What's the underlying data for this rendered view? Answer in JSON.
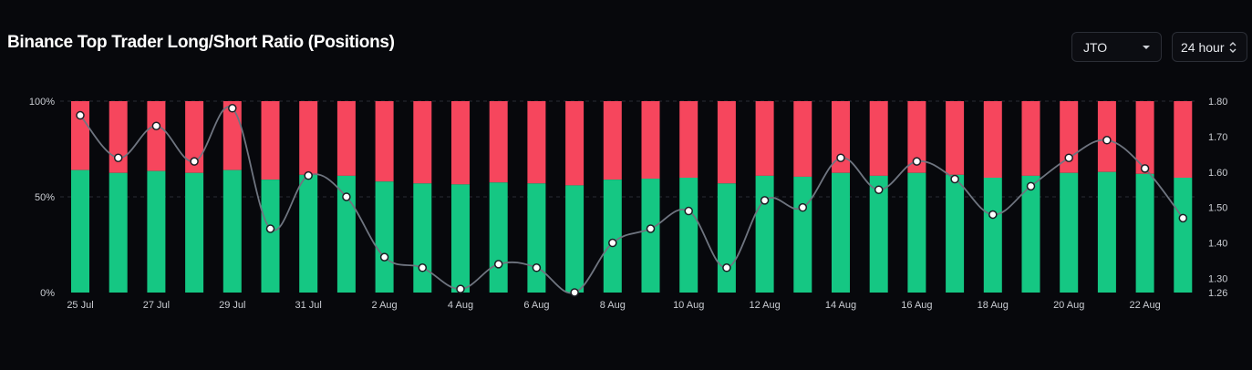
{
  "header": {
    "title": "Binance Top Trader Long/Short Ratio (Positions)",
    "symbol": "JTO",
    "interval": "24 hour"
  },
  "colors": {
    "long": "#15c783",
    "short": "#f6465d",
    "line": "#6f7580",
    "background": "#07080c"
  },
  "chart_data": {
    "type": "bar",
    "stacked": true,
    "categories": [
      "25 Jul",
      "26 Jul",
      "27 Jul",
      "28 Jul",
      "29 Jul",
      "30 Jul",
      "31 Jul",
      "1 Aug",
      "2 Aug",
      "3 Aug",
      "4 Aug",
      "5 Aug",
      "6 Aug",
      "7 Aug",
      "8 Aug",
      "9 Aug",
      "10 Aug",
      "11 Aug",
      "12 Aug",
      "13 Aug",
      "14 Aug",
      "15 Aug",
      "16 Aug",
      "17 Aug",
      "18 Aug",
      "19 Aug",
      "20 Aug",
      "21 Aug",
      "22 Aug",
      "23 Aug"
    ],
    "x_tick_labels": [
      "25 Jul",
      "27 Jul",
      "29 Jul",
      "31 Jul",
      "2 Aug",
      "4 Aug",
      "6 Aug",
      "8 Aug",
      "10 Aug",
      "12 Aug",
      "14 Aug",
      "16 Aug",
      "18 Aug",
      "20 Aug",
      "22 Aug"
    ],
    "series": [
      {
        "values": [
          64,
          62.5,
          63.5,
          62.5,
          64,
          59,
          61.5,
          61,
          58,
          57,
          56.5,
          57.5,
          57,
          56,
          59,
          59.5,
          60,
          57,
          61,
          60.5,
          62.5,
          61,
          62.5,
          61.5,
          60,
          61,
          62.5,
          63,
          62,
          60
        ]
      },
      {
        "values": [
          36,
          37.5,
          36.5,
          37.5,
          36,
          41,
          38.5,
          39,
          42,
          43,
          43.5,
          42.5,
          43,
          44,
          41,
          40.5,
          40,
          43,
          39,
          39.5,
          37.5,
          39,
          37.5,
          38.5,
          40,
          39,
          37.5,
          37,
          38,
          40
        ]
      },
      {
        "axis": "right",
        "type": "line",
        "values": [
          1.76,
          1.64,
          1.73,
          1.63,
          1.78,
          1.44,
          1.59,
          1.53,
          1.36,
          1.33,
          1.27,
          1.34,
          1.33,
          1.26,
          1.4,
          1.44,
          1.49,
          1.33,
          1.52,
          1.5,
          1.64,
          1.55,
          1.63,
          1.58,
          1.48,
          1.56,
          1.64,
          1.69,
          1.61,
          1.47
        ]
      }
    ],
    "y_left": {
      "ticks": [
        "100%",
        "50%",
        "0%"
      ],
      "ylim": [
        0,
        100
      ]
    },
    "y_right": {
      "ticks": [
        "1.80",
        "1.70",
        "1.60",
        "1.50",
        "1.40",
        "1.30",
        "1.26"
      ],
      "ylim": [
        1.26,
        1.8
      ]
    },
    "grid": true
  }
}
